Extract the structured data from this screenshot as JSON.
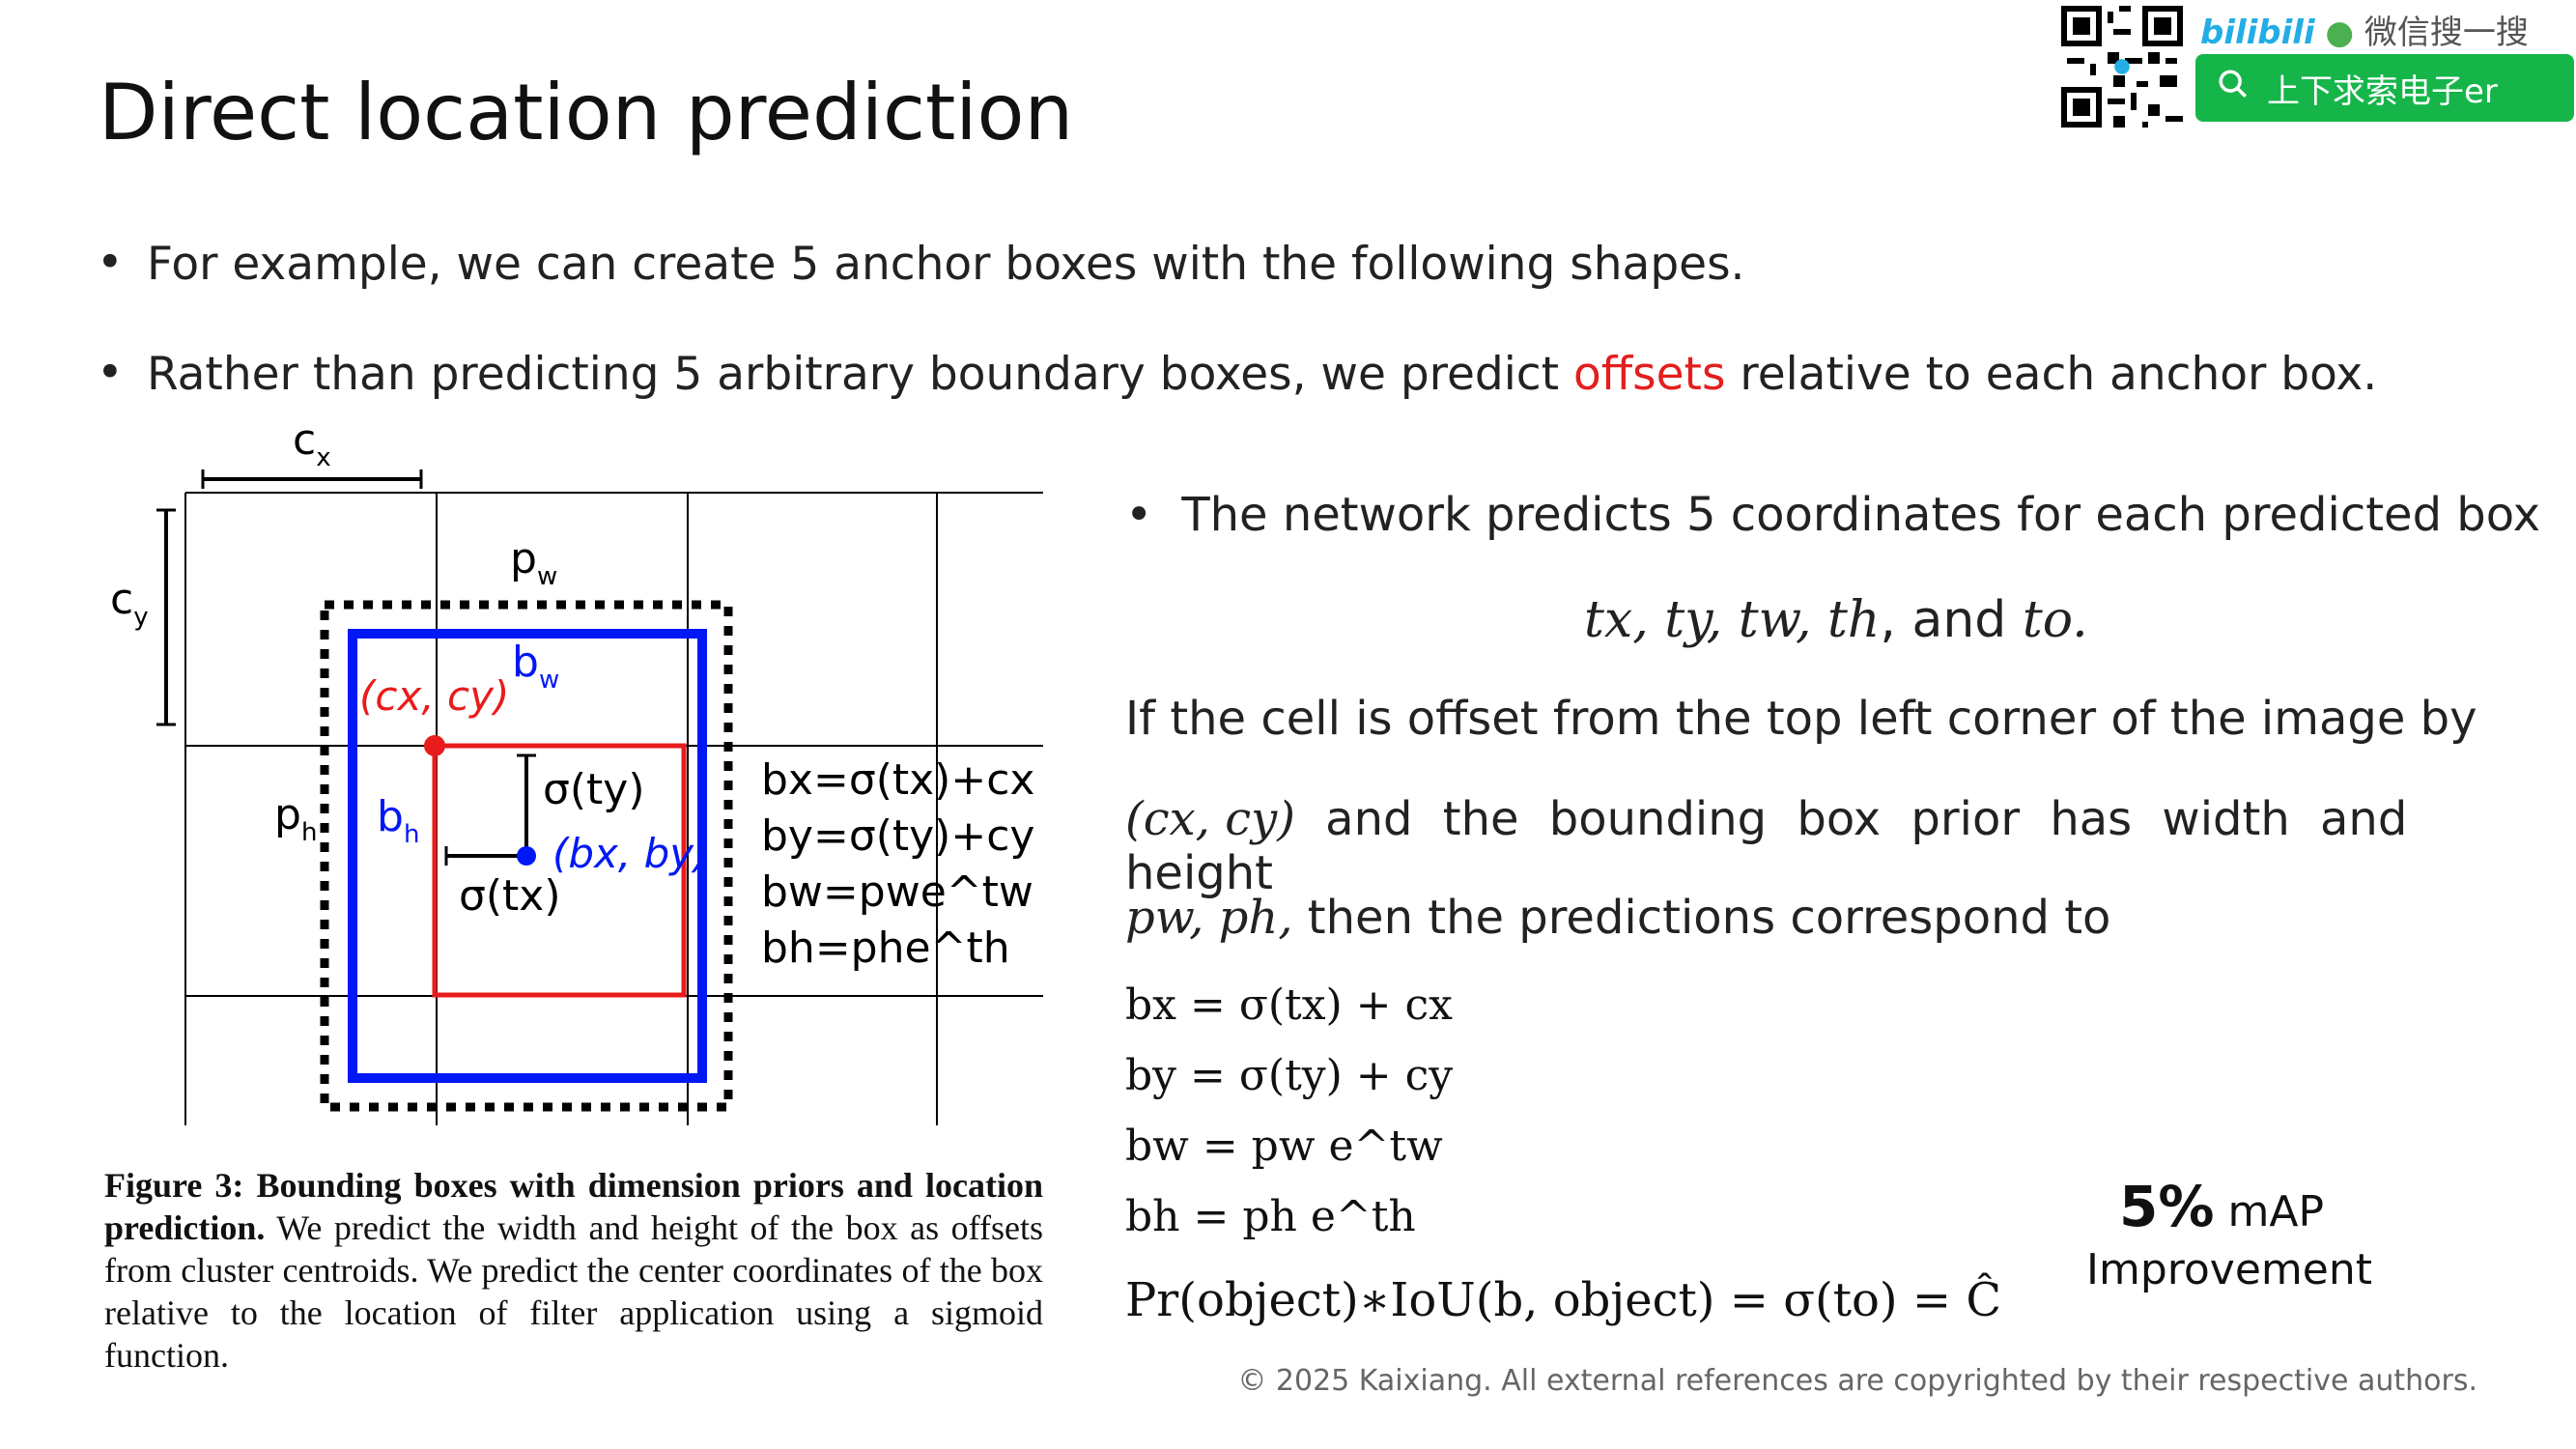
{
  "slide": {
    "title": "Direct location prediction",
    "bullets": [
      "For example, we can create 5 anchor boxes with the following shapes.",
      {
        "before": "Rather than predicting 5 arbitrary boundary boxes, we predict ",
        "highlight": "offsets",
        "after": " relative to each anchor box."
      }
    ],
    "right": {
      "bullet": "The network predicts 5 coordinates for each predicted box",
      "coords_main": "tx, ty, tw, th",
      "coords_and": ", and ",
      "coords_last": "to.",
      "para1": "If the cell is offset from the top left corner of the image by",
      "para2_math": "(cx, cy)",
      "para2_text": " and the bounding box prior has width and height",
      "para3_math": "pw, ph,",
      "para3_text": " then the predictions correspond to"
    },
    "equations": [
      "bx = σ(tx) + cx",
      "by = σ(ty) + cy",
      "bw = pw e^tw",
      "bh = ph e^th",
      "Pr(object)∗IoU(b, object) = σ(to) = Ĉ"
    ],
    "improvement": {
      "value": "5%",
      "metric": "mAP",
      "label": "Improvement"
    },
    "caption": {
      "label": "Figure 3:",
      "bold_text": "Bounding boxes with dimension priors and location prediction.",
      "text": "We predict the width and height of the box as offsets from cluster centroids. We predict the center coordinates of the box relative to the location of filter application using a sigmoid function."
    },
    "copyright": "© 2025 Kaixiang. All external references are copyrighted by their respective authors."
  },
  "figure": {
    "labels": {
      "cx": "c",
      "cx_sub": "x",
      "cy": "c",
      "cy_sub": "y",
      "pw": "p",
      "pw_sub": "w",
      "ph": "p",
      "ph_sub": "h",
      "bw": "b",
      "bw_sub": "w",
      "bh": "b",
      "bh_sub": "h",
      "red_point": "(cx, cy)",
      "blue_point": "(bx, by)",
      "sigma_ty": "σ(ty)",
      "sigma_tx": "σ(tx)",
      "eq1": "bx=σ(tx)+cx",
      "eq2": "by=σ(ty)+cy",
      "eq3": "bw=pwe^tw",
      "eq4": "bh=phe^th"
    },
    "colors": {
      "blue": "#0018f5",
      "red": "#e81c1c",
      "black": "#000000"
    }
  },
  "header": {
    "bilibili_logo": "bilibili",
    "wechat_text": "微信搜一搜",
    "search_text": "上下求索电子er"
  }
}
